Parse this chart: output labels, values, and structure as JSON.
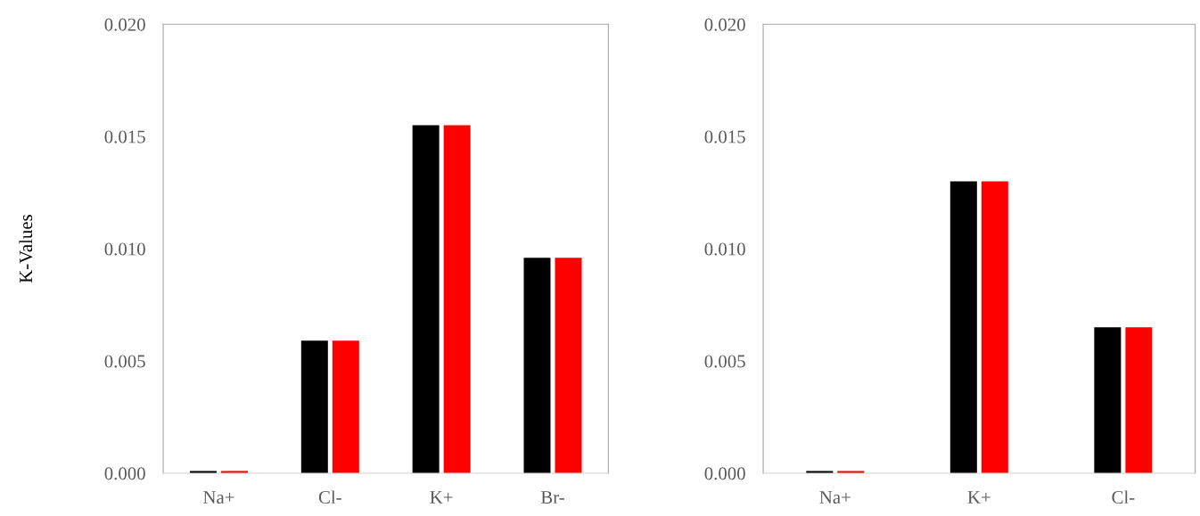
{
  "chart_data": [
    {
      "type": "bar",
      "ylabel": "K-Values",
      "categories": [
        "Na+",
        "Cl-",
        "K+",
        "Br-"
      ],
      "series": [
        {
          "color": "#000000",
          "values": [
            0.0001,
            0.0059,
            0.0155,
            0.0096
          ]
        },
        {
          "color": "#ff0000",
          "values": [
            0.0001,
            0.0059,
            0.0155,
            0.0096
          ]
        }
      ],
      "ylim": [
        0,
        0.02
      ],
      "yticks": [
        {
          "value": 0,
          "label": "0.000"
        },
        {
          "value": 0.005,
          "label": "0.005"
        },
        {
          "value": 0.01,
          "label": "0.010"
        },
        {
          "value": 0.015,
          "label": "0.015"
        },
        {
          "value": 0.02,
          "label": "0.020"
        }
      ]
    },
    {
      "type": "bar",
      "categories": [
        "Na+",
        "K+",
        "Cl-"
      ],
      "series": [
        {
          "color": "#000000",
          "values": [
            0.0001,
            0.013,
            0.0065
          ]
        },
        {
          "color": "#ff0000",
          "values": [
            0.0001,
            0.013,
            0.0065
          ]
        }
      ],
      "ylim": [
        0,
        0.02
      ],
      "yticks": [
        {
          "value": 0,
          "label": "0.000"
        },
        {
          "value": 0.005,
          "label": "0.005"
        },
        {
          "value": 0.01,
          "label": "0.010"
        },
        {
          "value": 0.015,
          "label": "0.015"
        },
        {
          "value": 0.02,
          "label": "0.020"
        }
      ]
    }
  ]
}
